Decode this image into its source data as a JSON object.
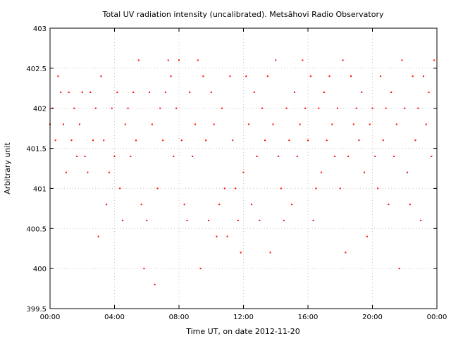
{
  "chart_data": {
    "type": "scatter",
    "title": "Total UV radiation intensity (uncalibrated). Metsähovi Radio Observatory",
    "xlabel": "Time UT, on date 2012-11-20",
    "ylabel": "Arbitrary unit",
    "xlim": [
      "00:00",
      "24:00"
    ],
    "ylim": [
      399.5,
      403
    ],
    "x_ticks": [
      "00:00",
      "04:00",
      "08:00",
      "12:00",
      "16:00",
      "20:00",
      "00:00"
    ],
    "y_ticks": [
      "399.5",
      "400",
      "400.5",
      "401",
      "401.5",
      "402",
      "402.5",
      "403"
    ],
    "grid": true,
    "point_color": "#ff0000",
    "series": [
      {
        "points": [
          [
            "00:00",
            401.8
          ],
          [
            "00:10",
            402.0
          ],
          [
            "00:20",
            401.6
          ],
          [
            "00:30",
            402.4
          ],
          [
            "00:40",
            402.2
          ],
          [
            "00:50",
            401.8
          ],
          [
            "01:00",
            401.2
          ],
          [
            "01:10",
            402.2
          ],
          [
            "01:20",
            401.6
          ],
          [
            "01:30",
            402.0
          ],
          [
            "01:40",
            401.4
          ],
          [
            "01:50",
            401.8
          ],
          [
            "02:00",
            402.2
          ],
          [
            "02:10",
            401.4
          ],
          [
            "02:20",
            401.2
          ],
          [
            "02:30",
            402.2
          ],
          [
            "02:40",
            401.6
          ],
          [
            "02:50",
            402.0
          ],
          [
            "03:00",
            400.4
          ],
          [
            "03:10",
            402.4
          ],
          [
            "03:20",
            401.6
          ],
          [
            "03:30",
            400.8
          ],
          [
            "03:40",
            401.2
          ],
          [
            "03:50",
            402.0
          ],
          [
            "04:00",
            401.4
          ],
          [
            "04:10",
            402.2
          ],
          [
            "04:20",
            401.0
          ],
          [
            "04:30",
            400.6
          ],
          [
            "04:40",
            401.8
          ],
          [
            "04:50",
            402.0
          ],
          [
            "05:00",
            401.4
          ],
          [
            "05:10",
            402.2
          ],
          [
            "05:20",
            401.6
          ],
          [
            "05:30",
            402.6
          ],
          [
            "05:40",
            400.8
          ],
          [
            "05:50",
            400.0
          ],
          [
            "06:00",
            400.6
          ],
          [
            "06:10",
            402.2
          ],
          [
            "06:20",
            401.8
          ],
          [
            "06:30",
            399.8
          ],
          [
            "06:40",
            401.0
          ],
          [
            "06:50",
            402.0
          ],
          [
            "07:00",
            401.6
          ],
          [
            "07:10",
            402.2
          ],
          [
            "07:20",
            402.6
          ],
          [
            "07:30",
            402.4
          ],
          [
            "07:40",
            401.4
          ],
          [
            "07:50",
            402.0
          ],
          [
            "08:00",
            402.6
          ],
          [
            "08:10",
            401.6
          ],
          [
            "08:20",
            400.8
          ],
          [
            "08:30",
            400.6
          ],
          [
            "08:40",
            402.2
          ],
          [
            "08:50",
            401.4
          ],
          [
            "09:00",
            401.8
          ],
          [
            "09:10",
            402.6
          ],
          [
            "09:20",
            400.0
          ],
          [
            "09:30",
            402.4
          ],
          [
            "09:40",
            401.6
          ],
          [
            "09:50",
            400.6
          ],
          [
            "10:00",
            402.2
          ],
          [
            "10:10",
            401.8
          ],
          [
            "10:20",
            400.4
          ],
          [
            "10:30",
            400.8
          ],
          [
            "10:40",
            402.0
          ],
          [
            "10:50",
            401.0
          ],
          [
            "11:00",
            400.4
          ],
          [
            "11:10",
            402.4
          ],
          [
            "11:20",
            401.6
          ],
          [
            "11:30",
            401.0
          ],
          [
            "11:40",
            400.6
          ],
          [
            "11:50",
            400.2
          ],
          [
            "12:00",
            401.2
          ],
          [
            "12:10",
            402.4
          ],
          [
            "12:20",
            401.8
          ],
          [
            "12:30",
            400.8
          ],
          [
            "12:40",
            402.2
          ],
          [
            "12:50",
            401.4
          ],
          [
            "13:00",
            400.6
          ],
          [
            "13:10",
            402.0
          ],
          [
            "13:20",
            401.6
          ],
          [
            "13:30",
            402.4
          ],
          [
            "13:40",
            400.2
          ],
          [
            "13:50",
            401.8
          ],
          [
            "14:00",
            402.6
          ],
          [
            "14:10",
            401.4
          ],
          [
            "14:20",
            401.0
          ],
          [
            "14:30",
            400.6
          ],
          [
            "14:40",
            402.0
          ],
          [
            "14:50",
            401.6
          ],
          [
            "15:00",
            400.8
          ],
          [
            "15:10",
            402.2
          ],
          [
            "15:20",
            401.4
          ],
          [
            "15:30",
            401.8
          ],
          [
            "15:40",
            402.6
          ],
          [
            "15:50",
            402.0
          ],
          [
            "16:00",
            401.6
          ],
          [
            "16:10",
            402.4
          ],
          [
            "16:20",
            400.6
          ],
          [
            "16:30",
            401.0
          ],
          [
            "16:40",
            402.0
          ],
          [
            "16:50",
            401.2
          ],
          [
            "17:00",
            402.2
          ],
          [
            "17:10",
            401.6
          ],
          [
            "17:20",
            402.4
          ],
          [
            "17:30",
            401.8
          ],
          [
            "17:40",
            401.4
          ],
          [
            "17:50",
            402.0
          ],
          [
            "18:00",
            401.0
          ],
          [
            "18:10",
            402.6
          ],
          [
            "18:20",
            400.2
          ],
          [
            "18:30",
            401.4
          ],
          [
            "18:40",
            402.4
          ],
          [
            "18:50",
            401.8
          ],
          [
            "19:00",
            402.0
          ],
          [
            "19:10",
            401.6
          ],
          [
            "19:20",
            402.2
          ],
          [
            "19:30",
            401.2
          ],
          [
            "19:40",
            400.4
          ],
          [
            "19:50",
            401.8
          ],
          [
            "20:00",
            402.0
          ],
          [
            "20:10",
            401.4
          ],
          [
            "20:20",
            401.0
          ],
          [
            "20:30",
            402.4
          ],
          [
            "20:40",
            401.6
          ],
          [
            "20:50",
            402.0
          ],
          [
            "21:00",
            400.8
          ],
          [
            "21:10",
            402.2
          ],
          [
            "21:20",
            401.4
          ],
          [
            "21:30",
            401.8
          ],
          [
            "21:40",
            400.0
          ],
          [
            "21:50",
            402.6
          ],
          [
            "22:00",
            402.0
          ],
          [
            "22:10",
            401.2
          ],
          [
            "22:20",
            400.8
          ],
          [
            "22:30",
            402.4
          ],
          [
            "22:40",
            401.6
          ],
          [
            "22:50",
            402.0
          ],
          [
            "23:00",
            400.6
          ],
          [
            "23:10",
            402.4
          ],
          [
            "23:20",
            401.8
          ],
          [
            "23:30",
            402.2
          ],
          [
            "23:40",
            401.4
          ],
          [
            "23:50",
            402.6
          ]
        ]
      }
    ]
  }
}
